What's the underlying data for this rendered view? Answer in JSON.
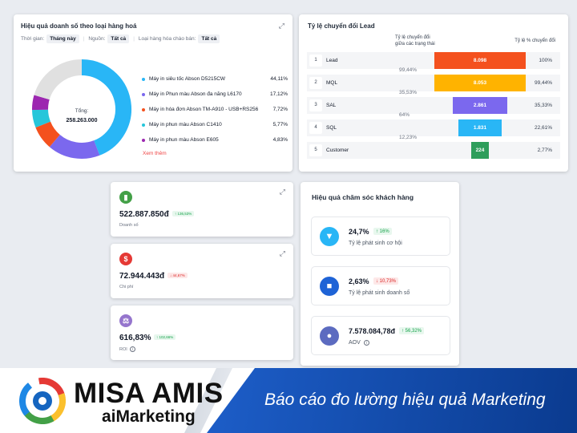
{
  "sales_by_product": {
    "title": "Hiệu quả doanh số theo loại hàng hoá",
    "filters": [
      {
        "label": "Thời gian:",
        "value": "Tháng này"
      },
      {
        "label": "Nguồn:",
        "value": "Tất cả"
      },
      {
        "label": "Loại hàng hóa chào bán:",
        "value": "Tất cả"
      }
    ],
    "donut_center": {
      "label": "Tổng:",
      "value": "258.263.000"
    },
    "items": [
      {
        "name": "Máy in siêu tốc Abson D5215CW",
        "value": "44,11%",
        "color": "#29b6f6"
      },
      {
        "name": "Máy in Phun màu Abson đa năng L6170",
        "value": "17,12%",
        "color": "#7b68ee"
      },
      {
        "name": "Máy in hóa đơn Abson TM-A910 - USB+RS256",
        "value": "7,72%",
        "color": "#f4511e"
      },
      {
        "name": "Máy in phun màu Abson C1410",
        "value": "5,77%",
        "color": "#26c6da"
      },
      {
        "name": "Máy in phun màu Abson E605",
        "value": "4,83%",
        "color": "#9c27b0"
      }
    ],
    "remainder_color": "#e0e0e0",
    "more_link": "Xem thêm"
  },
  "chart_data": {
    "type": "pie",
    "title": "Hiệu quả doanh số theo loại hàng hoá",
    "categories": [
      "Máy in siêu tốc Abson D5215CW",
      "Máy in Phun màu Abson đa năng L6170",
      "Máy in hóa đơn Abson TM-A910 - USB+RS256",
      "Máy in phun màu Abson C1410",
      "Máy in phun màu Abson E605"
    ],
    "values": [
      44.11,
      17.12,
      7.72,
      5.77,
      4.83
    ]
  },
  "funnel": {
    "title": "Tỷ lệ chuyển đổi Lead",
    "col_conv_line1": "Tỷ lệ chuyển đổi",
    "col_conv_line2": "giữa các trạng thái",
    "col_pct": "Tỷ lệ % chuyển đổi",
    "stages": [
      {
        "num": "1",
        "name": "Lead",
        "count": "8.098",
        "ratio": 1.0,
        "pct": "100%",
        "color": "#f4511e"
      },
      {
        "num": "2",
        "name": "MQL",
        "count": "8.053",
        "ratio": 0.9944,
        "pct": "99,44%",
        "color": "#ffb300"
      },
      {
        "num": "3",
        "name": "SAL",
        "count": "2.861",
        "ratio": 0.3533,
        "pct": "35,33%",
        "color": "#7b68ee"
      },
      {
        "num": "4",
        "name": "SQL",
        "count": "1.831",
        "ratio": 0.2261,
        "pct": "22,61%",
        "color": "#29b6f6"
      },
      {
        "num": "5",
        "name": "Customer",
        "count": "224",
        "ratio": 0.0277,
        "pct": "2,77%",
        "color": "#2e9e5b"
      }
    ],
    "conversions": [
      "99,44%",
      "35,53%",
      "64%",
      "12,23%"
    ]
  },
  "kpis": [
    {
      "value": "522.887.850đ",
      "badge": "↑ 136,53%",
      "trend": "up",
      "label": "Doanh số",
      "icon": "bar-chart-icon",
      "icon_glyph": "▮",
      "color": "#43a047",
      "info": false
    },
    {
      "value": "72.944.443đ",
      "badge": "↓ 44,67%",
      "trend": "down",
      "label": "Chi phí",
      "icon": "dollar-icon",
      "icon_glyph": "$",
      "color": "#e53935",
      "info": false
    },
    {
      "value": "616,83%",
      "badge": "↑ 102,66%",
      "trend": "up",
      "label": "ROI",
      "icon": "roi-icon",
      "icon_glyph": "⚖",
      "color": "#9575cd",
      "info": true
    }
  ],
  "customer_care": {
    "title": "Hiệu quả chăm sóc khách hàng",
    "rows": [
      {
        "value": "24,7%",
        "badge": "↑ 16%",
        "trend": "up",
        "label": "Tỷ lệ phát sinh cơ hội",
        "icon": "funnel-icon",
        "icon_glyph": "▼",
        "color": "#29b6f6",
        "info": false
      },
      {
        "value": "2,63%",
        "badge": "↓ 10,73%",
        "trend": "down",
        "label": "Tỷ lệ phát sinh doanh số",
        "icon": "document-icon",
        "icon_glyph": "■",
        "color": "#1e63d6",
        "info": false
      },
      {
        "value": "7.578.084,78đ",
        "badge": "↑ 56,32%",
        "trend": "up",
        "label": "AOV",
        "icon": "money-icon",
        "icon_glyph": "●",
        "color": "#5c6bc0",
        "info": true
      }
    ]
  },
  "footer": {
    "brand": "MISA AMIS",
    "sub": "aiMarketing",
    "tagline": "Báo cáo đo lường hiệu quả Marketing"
  }
}
